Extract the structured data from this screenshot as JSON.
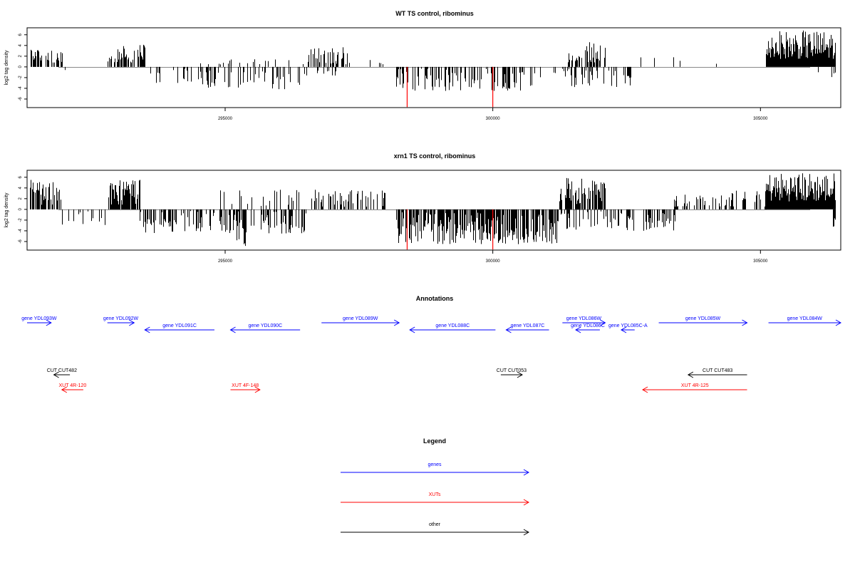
{
  "colors": {
    "gene": "#0000ff",
    "xut": "#ff0000",
    "other": "#000000",
    "bar": "#000000",
    "highlight": "#ff0000",
    "baseline": "#888888"
  },
  "chart_data": [
    {
      "type": "bar",
      "title": "WT TS control, ribominus",
      "ylabel": "log2 tag density",
      "xlim": [
        291300,
        306500
      ],
      "ylim": [
        -7.6,
        7.3
      ],
      "x_ticks": [
        "295000",
        "300000",
        "305000"
      ],
      "y_ticks": [
        "6",
        "4",
        "2",
        "0",
        "-2",
        "-4",
        "-6"
      ],
      "highlights": [
        298400,
        300000
      ],
      "highlight_value": -7.5,
      "regions": [
        {
          "start": 291350,
          "end": 291950,
          "density": 0.55,
          "min": 0.8,
          "max": 3.8
        },
        {
          "start": 291950,
          "end": 292000,
          "density": 0.2,
          "min": -1.0,
          "max": -0.3
        },
        {
          "start": 292800,
          "end": 293500,
          "density": 0.6,
          "min": 0.8,
          "max": 4.2
        },
        {
          "start": 293500,
          "end": 294500,
          "density": 0.25,
          "min": -3.0,
          "max": -0.3
        },
        {
          "start": 294500,
          "end": 296400,
          "density": 0.3,
          "min": -4.2,
          "max": -0.5
        },
        {
          "start": 294500,
          "end": 296400,
          "density": 0.1,
          "min": 0.3,
          "max": 1.5
        },
        {
          "start": 296400,
          "end": 297100,
          "density": 0.15,
          "min": -2.0,
          "max": -0.3
        },
        {
          "start": 296400,
          "end": 298000,
          "density": 0.3,
          "min": 0.5,
          "max": 3.7
        },
        {
          "start": 298200,
          "end": 300800,
          "density": 0.35,
          "min": -4.5,
          "max": -0.3
        },
        {
          "start": 300800,
          "end": 301400,
          "density": 0.15,
          "min": -2.0,
          "max": -0.3
        },
        {
          "start": 301400,
          "end": 302100,
          "density": 0.6,
          "min": 0.8,
          "max": 4.9
        },
        {
          "start": 301400,
          "end": 302600,
          "density": 0.35,
          "min": -3.8,
          "max": -0.3
        },
        {
          "start": 302600,
          "end": 305100,
          "density": 0.04,
          "min": 0.5,
          "max": 2.0
        },
        {
          "start": 305100,
          "end": 306400,
          "density": 1.0,
          "min": 1.5,
          "max": 6.8
        },
        {
          "start": 306000,
          "end": 306400,
          "density": 0.1,
          "min": -2.0,
          "max": -0.3
        }
      ]
    },
    {
      "type": "bar",
      "title": "xrn1 TS control, ribominus",
      "ylabel": "log2 tag density",
      "xlim": [
        291300,
        306500
      ],
      "ylim": [
        -7.6,
        7.3
      ],
      "x_ticks": [
        "295000",
        "300000",
        "305000"
      ],
      "y_ticks": [
        "6",
        "4",
        "2",
        "0",
        "-2",
        "-4",
        "-6"
      ],
      "highlights": [
        298400,
        300000
      ],
      "highlight_value": -7.5,
      "regions": [
        {
          "start": 291350,
          "end": 291950,
          "density": 0.6,
          "min": 0.8,
          "max": 5.6
        },
        {
          "start": 291950,
          "end": 292800,
          "density": 0.25,
          "min": -3.0,
          "max": -0.3
        },
        {
          "start": 292800,
          "end": 293400,
          "density": 0.75,
          "min": 0.8,
          "max": 5.8
        },
        {
          "start": 293400,
          "end": 296500,
          "density": 0.45,
          "min": -4.5,
          "max": -0.3
        },
        {
          "start": 294800,
          "end": 296500,
          "density": 0.15,
          "min": 0.5,
          "max": 4.0
        },
        {
          "start": 295200,
          "end": 295400,
          "density": 0.3,
          "min": -7.0,
          "max": -3.0
        },
        {
          "start": 296600,
          "end": 298000,
          "density": 0.35,
          "min": 0.5,
          "max": 3.7
        },
        {
          "start": 298200,
          "end": 301200,
          "density": 0.75,
          "min": -6.5,
          "max": -0.5
        },
        {
          "start": 301200,
          "end": 302100,
          "density": 0.7,
          "min": 1.0,
          "max": 6.0
        },
        {
          "start": 301200,
          "end": 303400,
          "density": 0.4,
          "min": -4.0,
          "max": -0.3
        },
        {
          "start": 303300,
          "end": 305100,
          "density": 0.3,
          "min": 0.5,
          "max": 3.5
        },
        {
          "start": 305100,
          "end": 306400,
          "density": 1.0,
          "min": 1.5,
          "max": 7.0
        },
        {
          "start": 306350,
          "end": 306400,
          "density": 1.0,
          "min": -3.3,
          "max": -1.0
        }
      ]
    }
  ],
  "annotations": {
    "title": "Annotations",
    "xlim": [
      291300,
      306500
    ],
    "features": [
      {
        "label": "gene YDL093W",
        "kind": "gene",
        "strand": "+",
        "start": 290800,
        "end": 291750,
        "row": 0
      },
      {
        "label": "gene YDL092W",
        "kind": "gene",
        "strand": "+",
        "start": 292800,
        "end": 293300,
        "row": 0
      },
      {
        "label": "gene YDL091C",
        "kind": "gene",
        "strand": "-",
        "start": 293500,
        "end": 294800,
        "row": 1
      },
      {
        "label": "gene YDL090C",
        "kind": "gene",
        "strand": "-",
        "start": 295100,
        "end": 296400,
        "row": 1
      },
      {
        "label": "gene YDL089W",
        "kind": "gene",
        "strand": "+",
        "start": 296800,
        "end": 298250,
        "row": 0
      },
      {
        "label": "gene YDL088C",
        "kind": "gene",
        "strand": "-",
        "start": 298450,
        "end": 300050,
        "row": 1
      },
      {
        "label": "gene YDL087C",
        "kind": "gene",
        "strand": "-",
        "start": 300250,
        "end": 301050,
        "row": 1
      },
      {
        "label": "gene YDL086W",
        "kind": "gene",
        "strand": "+",
        "start": 301300,
        "end": 302100,
        "row": 0
      },
      {
        "label": "gene YDL086C",
        "kind": "gene",
        "strand": "-",
        "start": 301550,
        "end": 302000,
        "row": 1
      },
      {
        "label": "gene YDL085C-A",
        "kind": "gene",
        "strand": "-",
        "start": 302400,
        "end": 302650,
        "row": 1
      },
      {
        "label": "gene YDL085W",
        "kind": "gene",
        "strand": "+",
        "start": 303100,
        "end": 304750,
        "row": 0
      },
      {
        "label": "gene YDL084W",
        "kind": "gene",
        "strand": "+",
        "start": 305150,
        "end": 306500,
        "row": 0
      },
      {
        "label": "CUT CUT482",
        "kind": "other",
        "strand": "-",
        "start": 291800,
        "end": 292100,
        "row": 2
      },
      {
        "label": "CUT CUT053",
        "kind": "other",
        "strand": "+",
        "start": 300150,
        "end": 300550,
        "row": 2
      },
      {
        "label": "CUT CUT483",
        "kind": "other",
        "strand": "-",
        "start": 303650,
        "end": 304750,
        "row": 2
      },
      {
        "label": "XUT 4R-120",
        "kind": "xut",
        "strand": "-",
        "start": 291950,
        "end": 292350,
        "row": 3
      },
      {
        "label": "XUT 4F-148",
        "kind": "xut",
        "strand": "+",
        "start": 295100,
        "end": 295650,
        "row": 3
      },
      {
        "label": "XUT 4R-125",
        "kind": "xut",
        "strand": "-",
        "start": 302800,
        "end": 304750,
        "row": 3
      }
    ]
  },
  "legend": {
    "title": "Legend",
    "items": [
      {
        "label": "genes",
        "kind": "gene"
      },
      {
        "label": "XUTs",
        "kind": "xut"
      },
      {
        "label": "other",
        "kind": "other"
      }
    ]
  }
}
